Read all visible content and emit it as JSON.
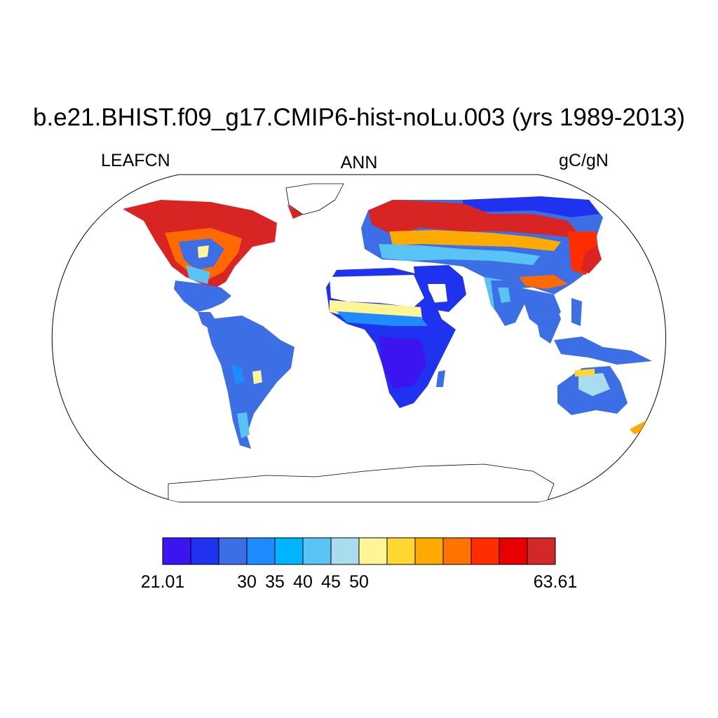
{
  "title": "b.e21.BHIST.f09_g17.CMIP6-hist-noLu.003 (yrs 1989-2013)",
  "left_string": "LEAFCN",
  "center_string": "ANN",
  "right_string": "gC/gN",
  "colorbar": {
    "colors": [
      "#3c14f0",
      "#1e32f0",
      "#3c6ee6",
      "#1e8cff",
      "#00b4ff",
      "#5ac3f5",
      "#aadcf0",
      "#fff596",
      "#ffd732",
      "#ffaa00",
      "#ff7300",
      "#ff2d00",
      "#e60000",
      "#d22828"
    ],
    "labels": [
      {
        "text": "21.01",
        "edge": 0
      },
      {
        "text": "30",
        "edge": 3
      },
      {
        "text": "35",
        "edge": 4
      },
      {
        "text": "40",
        "edge": 5
      },
      {
        "text": "45",
        "edge": 6
      },
      {
        "text": "50",
        "edge": 7
      },
      {
        "text": "63.61",
        "edge": 14
      }
    ]
  }
}
